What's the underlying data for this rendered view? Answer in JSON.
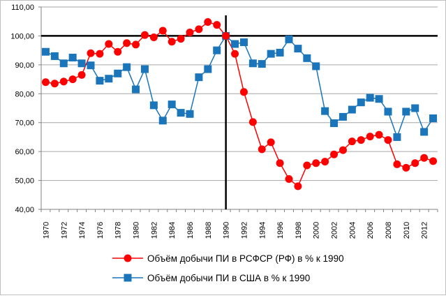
{
  "chart_data": {
    "type": "line",
    "title": "",
    "xlabel": "",
    "ylabel": "",
    "ylim": [
      40,
      110
    ],
    "yticks": [
      "40,00",
      "50,00",
      "60,00",
      "70,00",
      "80,00",
      "90,00",
      "100,00",
      "110,00"
    ],
    "x": [
      1970,
      1971,
      1972,
      1973,
      1974,
      1975,
      1976,
      1977,
      1978,
      1979,
      1980,
      1981,
      1982,
      1983,
      1984,
      1985,
      1986,
      1987,
      1988,
      1989,
      1990,
      1991,
      1992,
      1993,
      1994,
      1995,
      1996,
      1997,
      1998,
      1999,
      2000,
      2001,
      2002,
      2003,
      2004,
      2005,
      2006,
      2007,
      2008,
      2009,
      2010,
      2011,
      2012,
      2013
    ],
    "xtick_labels": [
      "1970",
      "1972",
      "1974",
      "1976",
      "1978",
      "1980",
      "1982",
      "1984",
      "1986",
      "1988",
      "1990",
      "1992",
      "1994",
      "1996",
      "1998",
      "2000",
      "2002",
      "2004",
      "2006",
      "2008",
      "2010",
      "2012"
    ],
    "grid": true,
    "reference_lines": {
      "x": 1990,
      "y": 100
    },
    "legend_position": "bottom",
    "series": [
      {
        "name": "Объём добычи ПИ в РСФСР (РФ) в % к 1990",
        "color": "#ff0000",
        "marker": "circle",
        "values": [
          84.0,
          83.5,
          84.2,
          85.0,
          86.5,
          94.0,
          93.8,
          97.2,
          94.5,
          97.5,
          97.0,
          100.3,
          99.5,
          101.8,
          98.0,
          99.0,
          101.2,
          102.3,
          104.8,
          103.8,
          100.0,
          93.8,
          80.6,
          70.2,
          60.8,
          63.2,
          56.0,
          50.5,
          48.0,
          55.2,
          56.0,
          56.5,
          59.0,
          60.5,
          63.5,
          64.0,
          65.2,
          65.8,
          64.0,
          55.6,
          54.4,
          56.0,
          57.8,
          56.7
        ]
      },
      {
        "name": "Объём добычи ПИ в США в % к 1990",
        "color": "#1a75bb",
        "marker": "square",
        "values": [
          94.5,
          93.0,
          90.5,
          92.5,
          90.5,
          89.8,
          84.5,
          85.2,
          87.0,
          89.2,
          81.5,
          88.5,
          76.0,
          70.7,
          76.3,
          73.4,
          73.0,
          85.7,
          88.5,
          95.0,
          100.0,
          97.2,
          97.8,
          90.5,
          90.3,
          93.8,
          94.2,
          98.8,
          95.6,
          92.3,
          89.5,
          74.0,
          69.8,
          72.0,
          74.5,
          77.0,
          78.6,
          78.2,
          73.8,
          65.0,
          73.8,
          75.0,
          66.8,
          71.5
        ]
      }
    ]
  }
}
